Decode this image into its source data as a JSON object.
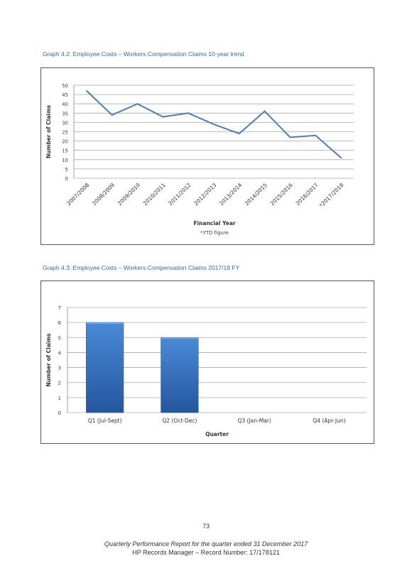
{
  "chart_data": [
    {
      "type": "line",
      "title": "Graph 4.2: Employee Costs – Workers Compensation Claims 10-year trend",
      "xlabel": "Financial Year",
      "ylabel": "Number of Claims",
      "note": "*YTD figure",
      "ylim": [
        0,
        50
      ],
      "ytick_step": 5,
      "grid": true,
      "color": "#4a7ebb",
      "categories": [
        "2007/2008",
        "2008/2009",
        "2009/2010",
        "2010/2011",
        "2011/2012",
        "2012/2013",
        "2013/2014",
        "2014/2015",
        "2015/2016",
        "2016/2017",
        "*2017/2018"
      ],
      "values": [
        47,
        34,
        40,
        33,
        35,
        29,
        24,
        36,
        22,
        23,
        11
      ]
    },
    {
      "type": "bar",
      "title": "Graph 4.3: Employee Costs – Workers Compensation Claims 2017/18 FY",
      "xlabel": "Quarter",
      "ylabel": "Number of Claims",
      "ylim": [
        0,
        7
      ],
      "ytick_step": 1,
      "grid": true,
      "color": "#3a78c8",
      "categories": [
        "Q1  (Jul-Sept)",
        "Q2 (Oct-Dec)",
        "Q3 (Jan-Mar)",
        "Q4 (Apr-Jun)"
      ],
      "values": [
        6,
        5,
        null,
        null
      ]
    }
  ],
  "page": {
    "number": "73",
    "footer_title": "Quarterly Performance Report for the quarter ended 31 December 2017",
    "footer_record": "HP Records Manager – Record Number: 17/178121"
  }
}
